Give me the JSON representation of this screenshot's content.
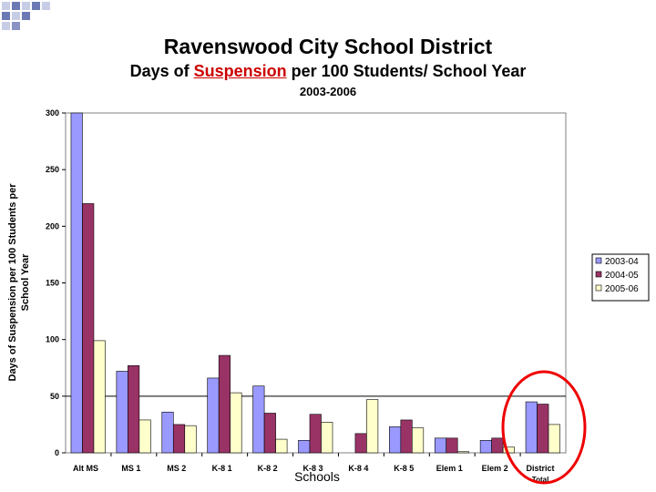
{
  "chart_data": {
    "type": "bar",
    "title": "Ravenswood City School District",
    "subtitle": {
      "pre": "Days of ",
      "highlight": "Suspension",
      "post": " per 100 Students/ School Year"
    },
    "subtitle2": "2003-2006",
    "xlabel": "Schools",
    "ylabel": [
      "Days of Suspension per 100 Students per",
      "School Year"
    ],
    "ylim": [
      0,
      300
    ],
    "yticks": [
      "0",
      "50",
      "100",
      "150",
      "200",
      "250",
      "300"
    ],
    "reference_line": 50,
    "categories": [
      [
        "Alt MS"
      ],
      [
        "MS 1"
      ],
      [
        "MS 2"
      ],
      [
        "K-8 1"
      ],
      [
        "K-8 2"
      ],
      [
        "K-8 3"
      ],
      [
        "K-8 4"
      ],
      [
        "K-8 5"
      ],
      [
        "Elem 1"
      ],
      [
        "Elem 2"
      ],
      [
        "District",
        "Total"
      ]
    ],
    "series": [
      {
        "name": "2003-04",
        "color": "#9999ff",
        "values": [
          300,
          72,
          36,
          66,
          59,
          11,
          0,
          23,
          13,
          11,
          45
        ]
      },
      {
        "name": "2004-05",
        "color": "#993366",
        "values": [
          220,
          77,
          25,
          86,
          35,
          34,
          17,
          29,
          13,
          13,
          43
        ]
      },
      {
        "name": "2005-06",
        "color": "#ffffcc",
        "values": [
          99,
          29,
          24,
          53,
          12,
          27,
          47,
          22,
          1,
          5,
          25
        ]
      }
    ],
    "legend_position": "right",
    "grid": false,
    "annotation": "red circle around District Total"
  }
}
